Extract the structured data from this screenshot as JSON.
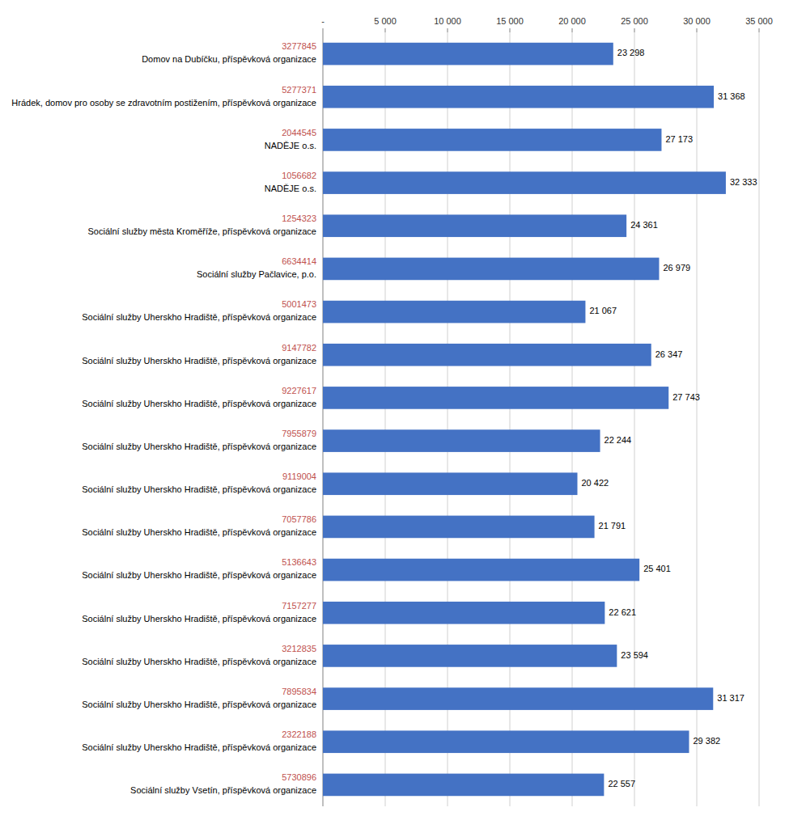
{
  "chart_data": {
    "type": "bar",
    "orientation": "horizontal",
    "categories": [
      "3277845",
      "5277371",
      "2044545",
      "1056682",
      "1254323",
      "6634414",
      "5001473",
      "9147782",
      "9227617",
      "7955879",
      "9119004",
      "7057786",
      "5136643",
      "7157277",
      "3212835",
      "7895834",
      "2322188",
      "5730896"
    ],
    "organizations": [
      "Domov na Dubíčku, příspěvková organizace",
      "Hrádek, domov pro osoby se zdravotním postižením, příspěvková organizace",
      "NADĚJE o.s.",
      "NADĚJE o.s.",
      "Sociální služby města Kroměříže, příspěvková organizace",
      "Sociální služby Pačlavice, p.o.",
      "Sociální služby Uherskho Hradiště, příspěvková organizace",
      "Sociální služby Uherskho Hradiště, příspěvková organizace",
      "Sociální služby Uherskho Hradiště, příspěvková organizace",
      "Sociální služby Uherskho Hradiště, příspěvková organizace",
      "Sociální služby Uherskho Hradiště, příspěvková organizace",
      "Sociální služby Uherskho Hradiště, příspěvková organizace",
      "Sociální služby Uherskho Hradiště, příspěvková organizace",
      "Sociální služby Uherskho Hradiště, příspěvková organizace",
      "Sociální služby Uherskho Hradiště, příspěvková organizace",
      "Sociální služby Uherskho Hradiště, příspěvková organizace",
      "Sociální služby Uherskho Hradiště, příspěvková organizace",
      "Sociální služby Vsetín, příspěvková organizace"
    ],
    "values": [
      23298,
      31368,
      27173,
      32333,
      24361,
      26979,
      21067,
      26347,
      27743,
      22244,
      20422,
      21791,
      25401,
      22621,
      23594,
      31317,
      29382,
      22557
    ],
    "value_labels": [
      "23 298",
      "31 368",
      "27 173",
      "32 333",
      "24 361",
      "26 979",
      "21 067",
      "26 347",
      "27 743",
      "22 244",
      "20 422",
      "21 791",
      "25 401",
      "22 621",
      "23 594",
      "31 317",
      "29 382",
      "22 557"
    ],
    "color": "#4472C4",
    "xlim": [
      0,
      35000
    ],
    "xticks": [
      {
        "value": 0,
        "label": "-"
      },
      {
        "value": 5000,
        "label": "5 000"
      },
      {
        "value": 10000,
        "label": "10 000"
      },
      {
        "value": 15000,
        "label": "15 000"
      },
      {
        "value": 20000,
        "label": "20 000"
      },
      {
        "value": 25000,
        "label": "25 000"
      },
      {
        "value": 30000,
        "label": "30 000"
      },
      {
        "value": 35000,
        "label": "35 000"
      }
    ],
    "grid": true,
    "data_labels": true
  }
}
